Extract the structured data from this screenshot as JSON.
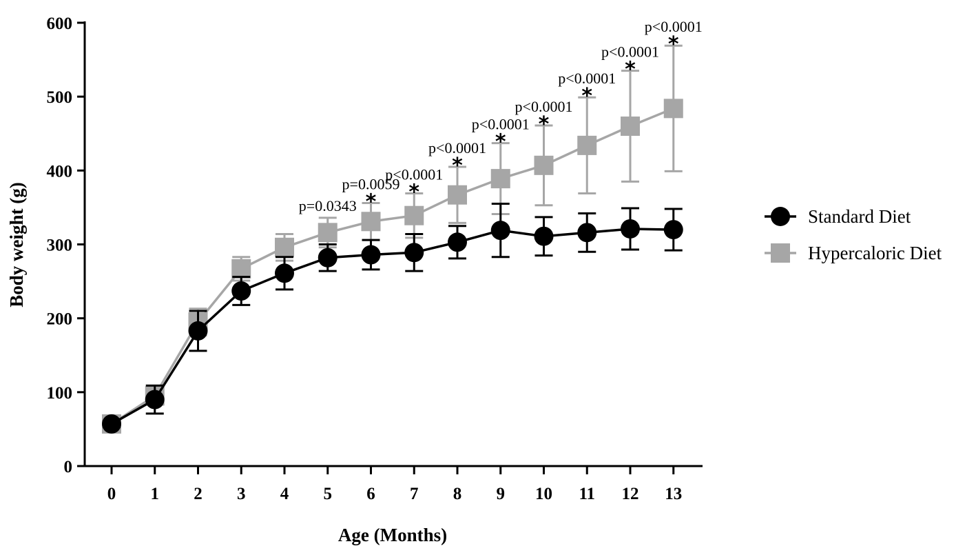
{
  "chart_data": {
    "type": "line",
    "xlabel": "Age (Months)",
    "ylabel": "Body weight (g)",
    "x": [
      0,
      1,
      2,
      3,
      4,
      5,
      6,
      7,
      8,
      9,
      10,
      11,
      12,
      13
    ],
    "x_tick_labels": [
      "0",
      "1",
      "2",
      "3",
      "4",
      "5",
      "6",
      "7",
      "8",
      "9",
      "10",
      "11",
      "12",
      "13"
    ],
    "ylim": [
      0,
      600
    ],
    "y_ticks": [
      0,
      100,
      200,
      300,
      400,
      500,
      600
    ],
    "grid": false,
    "legend_position": "right",
    "series": [
      {
        "name": "Standard Diet",
        "color": "#000000",
        "marker": "circle",
        "values": [
          57,
          90,
          183,
          237,
          261,
          282,
          286,
          289,
          303,
          319,
          311,
          316,
          321,
          320
        ],
        "error": [
          4,
          19,
          27,
          19,
          22,
          18,
          20,
          25,
          22,
          36,
          26,
          26,
          28,
          28
        ]
      },
      {
        "name": "Hypercaloric Diet",
        "color": "#a6a6a6",
        "marker": "square",
        "values": [
          57,
          95,
          195,
          267,
          296,
          316,
          331,
          339,
          367,
          389,
          407,
          434,
          460,
          484
        ],
        "error": [
          4,
          12,
          18,
          16,
          18,
          20,
          25,
          30,
          38,
          48,
          54,
          65,
          75,
          85
        ]
      }
    ],
    "annotations": [
      {
        "x": 5,
        "text": "p=0.0343",
        "star": false
      },
      {
        "x": 6,
        "text": "p=0.0059",
        "star": true
      },
      {
        "x": 7,
        "text": "p<0.0001",
        "star": true
      },
      {
        "x": 8,
        "text": "p<0.0001",
        "star": true
      },
      {
        "x": 9,
        "text": "p<0.0001",
        "star": true
      },
      {
        "x": 10,
        "text": "p<0.0001",
        "star": true
      },
      {
        "x": 11,
        "text": "p<0.0001",
        "star": true
      },
      {
        "x": 12,
        "text": "p<0.0001",
        "star": true
      },
      {
        "x": 13,
        "text": "p<0.0001",
        "star": true
      }
    ]
  }
}
